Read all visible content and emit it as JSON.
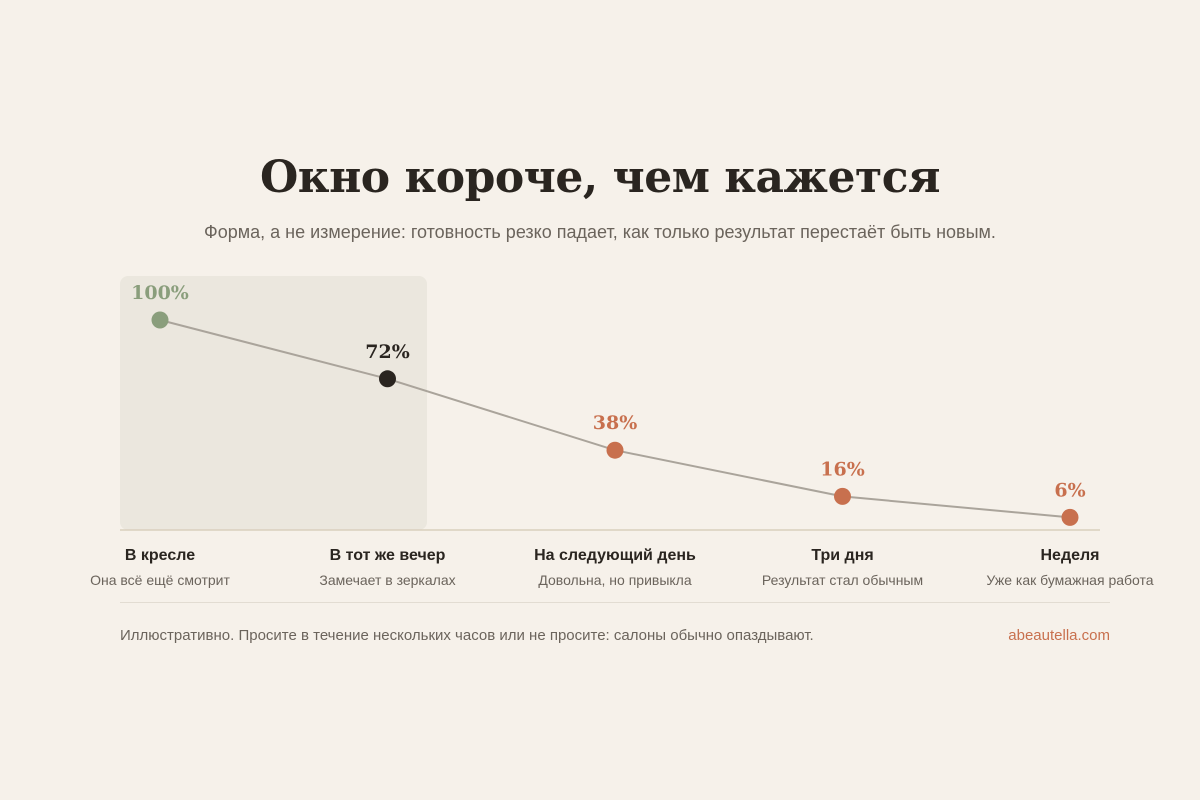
{
  "header": {
    "title": "Окно короче, чем кажется",
    "subtitle": "Форма, а не измерение: готовность резко падает, как только результат перестаёт быть новым."
  },
  "chart_data": {
    "type": "line",
    "categories": [
      "В кресле",
      "В тот же вечер",
      "На следующий день",
      "Три дня",
      "Неделя"
    ],
    "subcategories": [
      "Она всё ещё смотрит",
      "Замечает в зеркалах",
      "Довольна, но привыкла",
      "Результат стал обычным",
      "Уже как бумажная работа"
    ],
    "values": [
      100,
      72,
      38,
      16,
      6
    ],
    "value_labels": [
      "100%",
      "72%",
      "38%",
      "16%",
      "6%"
    ],
    "ylim": [
      0,
      100
    ],
    "grid": false,
    "highlighted_range": [
      "В кресле",
      "В тот же вечер"
    ],
    "colors": {
      "line": "#aaa49b",
      "first_point": "#8a9e7c",
      "second_point": "#2a2520",
      "later_points": "#c8704e",
      "highlight_band": "#ebe7de",
      "baseline": "#d9cfbd"
    }
  },
  "footer": {
    "note": "Иллюстративно. Просите в течение нескольких часов или не просите: салоны обычно опаздывают.",
    "site": "abeautella.com"
  }
}
